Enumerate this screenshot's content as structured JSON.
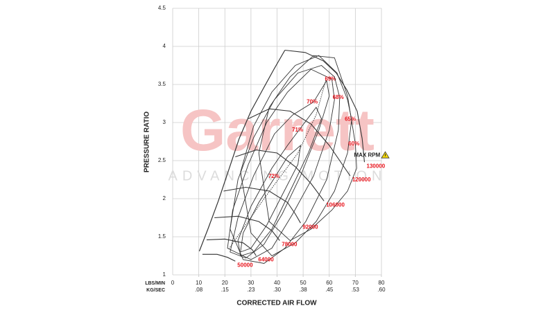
{
  "chart_data": {
    "type": "compressor_map",
    "x_label": "CORRECTED AIR FLOW",
    "y_label": "PRESSURE RATIO",
    "x_unit": "LBS/MIN",
    "x2_unit": "KG/SEC",
    "xlim": [
      0,
      80
    ],
    "xticks": [
      0,
      10,
      20,
      30,
      40,
      50,
      60,
      70,
      80
    ],
    "x2lim": [
      0,
      0.6048
    ],
    "x2ticks": [
      {
        "value": 0.0756,
        "label": ".08"
      },
      {
        "value": 0.1512,
        "label": ".15"
      },
      {
        "value": 0.2268,
        "label": ".23"
      },
      {
        "value": 0.3024,
        "label": ".30"
      },
      {
        "value": 0.378,
        "label": ".38"
      },
      {
        "value": 0.4536,
        "label": ".45"
      },
      {
        "value": 0.5292,
        "label": ".53"
      },
      {
        "value": 0.6048,
        "label": ".60"
      }
    ],
    "ylim": [
      1,
      4.5
    ],
    "yticks": [
      1,
      1.5,
      2,
      2.5,
      3,
      3.5,
      4,
      4.5
    ],
    "grid": true,
    "grid_color": "#cccccc",
    "line_color": "#333333",
    "label_color": "#e8141c",
    "watermark": "Garrett",
    "tagline": "ADVANCING MOTION",
    "max_rpm_label": "MAX RPM",
    "surge_line": {
      "x": [
        10.2,
        13.6,
        17.5,
        21.5,
        25.5,
        30,
        34.8,
        38.8,
        43
      ],
      "y": [
        1.31,
        1.61,
        1.97,
        2.38,
        2.79,
        3.15,
        3.45,
        3.7,
        3.95
      ]
    },
    "peak_efficiency_line": {
      "x": [
        21.5,
        35,
        48,
        55,
        58.7
      ],
      "y": [
        1.34,
        2.0,
        2.6,
        3.1,
        3.56
      ]
    },
    "speed_lines": [
      {
        "name": "50000",
        "x": [
          11.4,
          17,
          21,
          24
        ],
        "y": [
          1.27,
          1.27,
          1.23,
          1.18
        ]
      },
      {
        "name": "64000",
        "x": [
          13,
          20,
          27,
          30.5,
          32
        ],
        "y": [
          1.46,
          1.47,
          1.42,
          1.33,
          1.25
        ]
      },
      {
        "name": "78000",
        "x": [
          16,
          25,
          33,
          38,
          41
        ],
        "y": [
          1.75,
          1.77,
          1.7,
          1.58,
          1.45
        ]
      },
      {
        "name": "92000",
        "x": [
          19.5,
          28,
          37,
          44,
          47,
          49
        ],
        "y": [
          2.1,
          2.15,
          2.1,
          1.95,
          1.8,
          1.68
        ]
      },
      {
        "name": "106000",
        "x": [
          24,
          32,
          40,
          47,
          53,
          58
        ],
        "y": [
          2.55,
          2.64,
          2.6,
          2.42,
          2.2,
          1.97
        ]
      },
      {
        "name": "120000",
        "x": [
          29,
          37,
          45,
          53,
          60,
          65,
          68
        ],
        "y": [
          3.05,
          3.18,
          3.15,
          2.98,
          2.7,
          2.45,
          2.3
        ]
      },
      {
        "name": "130000",
        "x": [
          43,
          50.8,
          57.7,
          62.7,
          66.7,
          70.7,
          72.6,
          73.5
        ],
        "y": [
          3.95,
          3.92,
          3.81,
          3.65,
          3.43,
          3.15,
          2.79,
          2.48
        ]
      }
    ],
    "efficiency_islands": [
      {
        "name": "72%",
        "x": [
          39.3,
          44,
          49,
          48,
          42,
          36,
          30,
          26,
          27,
          33
        ],
        "y": [
          2.29,
          2.55,
          2.7,
          2.45,
          2.05,
          1.65,
          1.35,
          1.3,
          1.55,
          1.95
        ]
      },
      {
        "name": "71%",
        "x": [
          48.4,
          55,
          57,
          52,
          45,
          38,
          31,
          26,
          25,
          30,
          38,
          44
        ],
        "y": [
          2.9,
          3.2,
          3.05,
          2.6,
          2.1,
          1.6,
          1.3,
          1.25,
          1.45,
          1.9,
          2.4,
          2.7
        ]
      },
      {
        "name": "70%",
        "x": [
          54,
          59,
          60,
          56,
          49,
          42,
          35,
          28,
          22,
          25,
          31,
          39,
          46
        ],
        "y": [
          3.27,
          3.55,
          3.35,
          2.9,
          2.3,
          1.8,
          1.4,
          1.22,
          1.3,
          1.75,
          2.3,
          2.85,
          3.1
        ]
      },
      {
        "name": "69%",
        "x": [
          61,
          62,
          60,
          54,
          46,
          38,
          30,
          21,
          23,
          29,
          36,
          44,
          53
        ],
        "y": [
          3.57,
          3.3,
          2.9,
          2.3,
          1.8,
          1.35,
          1.2,
          1.35,
          1.85,
          2.45,
          3.0,
          3.4,
          3.7
        ]
      },
      {
        "name": "68%",
        "x": [
          64,
          63.5,
          59,
          51,
          43,
          35,
          27,
          22,
          25,
          31,
          39,
          48,
          57,
          62
        ],
        "y": [
          3.33,
          2.9,
          2.25,
          1.7,
          1.35,
          1.15,
          1.2,
          1.6,
          2.25,
          2.8,
          3.3,
          3.65,
          3.75,
          3.6
        ]
      },
      {
        "name": "65%",
        "x": [
          68.6,
          67,
          62,
          55,
          47,
          38,
          30,
          26,
          31,
          38,
          47,
          56,
          63,
          67
        ],
        "y": [
          3.04,
          2.6,
          2.1,
          1.7,
          1.42,
          1.25,
          1.55,
          2.35,
          2.95,
          3.4,
          3.75,
          3.88,
          3.65,
          3.3
        ]
      },
      {
        "name": "60%",
        "x": [
          70,
          70.5,
          67,
          61,
          53,
          45,
          37,
          33,
          37,
          45,
          54,
          62,
          67
        ],
        "y": [
          2.72,
          2.4,
          2.1,
          1.85,
          1.6,
          1.45,
          1.7,
          2.6,
          3.2,
          3.6,
          3.88,
          3.85,
          3.35
        ]
      }
    ]
  }
}
